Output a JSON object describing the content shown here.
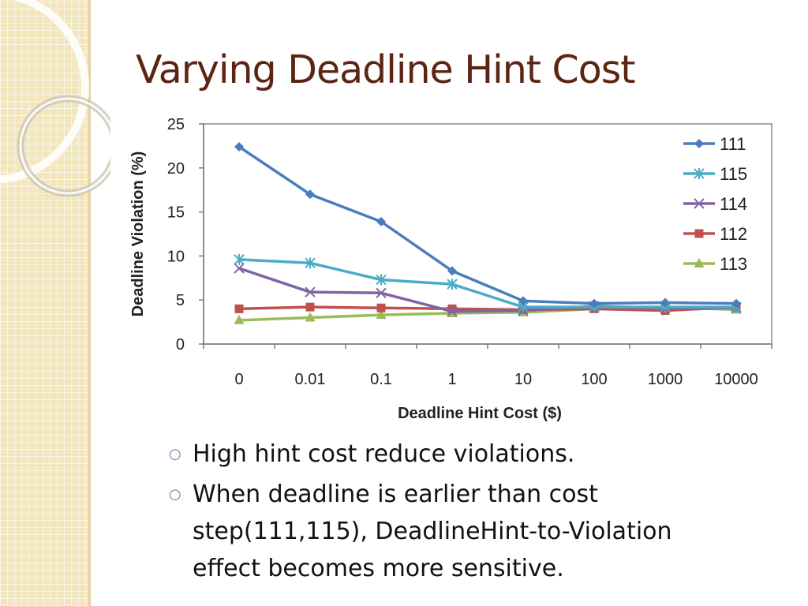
{
  "slide": {
    "title": "Varying Deadline Hint Cost",
    "bullets": [
      "High hint cost reduce violations.",
      "When deadline is earlier than cost step(111,115), DeadlineHint-to-Violation effect becomes more sensitive."
    ],
    "bullet_icon": "hollow-circle-bullet",
    "title_color": "#5c2413"
  },
  "chart_data": {
    "type": "line",
    "title": "",
    "xlabel": "Deadline Hint Cost ($)",
    "ylabel": "Deadline Violation (%)",
    "categories": [
      "0",
      "0.01",
      "0.1",
      "1",
      "10",
      "100",
      "1000",
      "10000"
    ],
    "ylim": [
      0,
      25
    ],
    "yticks": [
      "0",
      "5",
      "10",
      "15",
      "20",
      "25"
    ],
    "grid": false,
    "legend": "right",
    "series": [
      {
        "name": "111",
        "color": "#4a7ebb",
        "marker": "diamond",
        "values": [
          22.4,
          17.0,
          13.9,
          8.3,
          4.9,
          4.6,
          4.7,
          4.6
        ]
      },
      {
        "name": "115",
        "color": "#4bacc6",
        "marker": "asterisk",
        "values": [
          9.6,
          9.2,
          7.3,
          6.8,
          4.2,
          4.2,
          4.2,
          4.2
        ]
      },
      {
        "name": "114",
        "color": "#8064a2",
        "marker": "x",
        "values": [
          8.6,
          5.9,
          5.8,
          3.7,
          3.8,
          4.3,
          4.1,
          4.1
        ]
      },
      {
        "name": "112",
        "color": "#c0504d",
        "marker": "square",
        "values": [
          4.0,
          4.2,
          4.1,
          4.0,
          3.9,
          4.0,
          3.8,
          4.2
        ]
      },
      {
        "name": "113",
        "color": "#9bbb59",
        "marker": "triangle",
        "values": [
          2.7,
          3.0,
          3.3,
          3.5,
          3.6,
          4.0,
          4.2,
          3.9
        ]
      }
    ]
  }
}
